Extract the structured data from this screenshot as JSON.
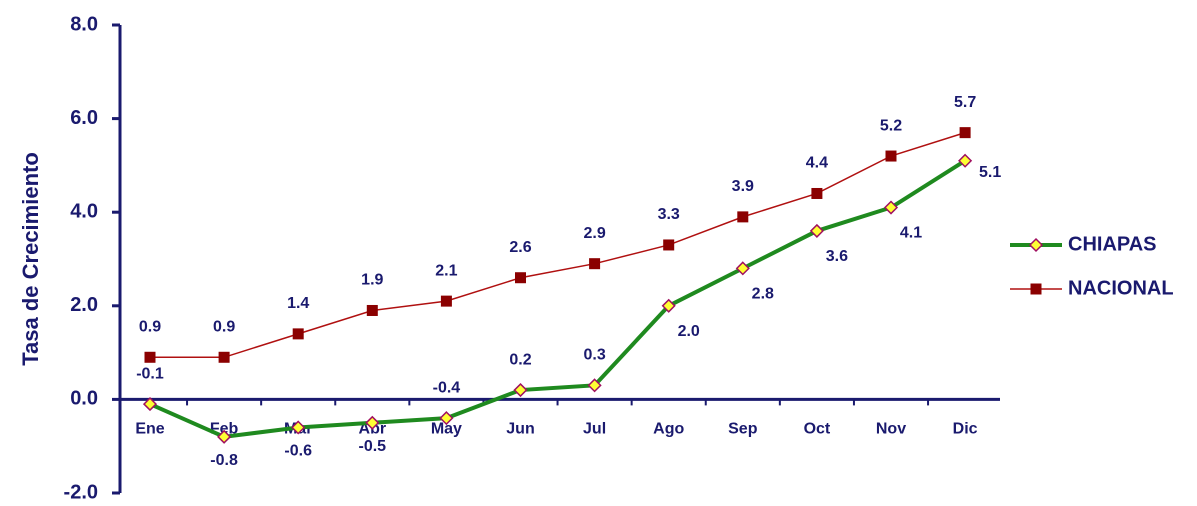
{
  "chart_data": {
    "type": "line",
    "y_label": "Tasa de Crecimiento",
    "categories": [
      "Ene",
      "Feb",
      "Mar",
      "Abr",
      "May",
      "Jun",
      "Jul",
      "Ago",
      "Sep",
      "Oct",
      "Nov",
      "Dic"
    ],
    "series": [
      {
        "name": "CHIAPAS",
        "color": "#1f8a1f",
        "marker": "diamond",
        "values": [
          -0.1,
          -0.8,
          -0.6,
          -0.5,
          -0.4,
          0.2,
          0.3,
          2.0,
          2.8,
          3.6,
          4.1,
          5.1
        ],
        "value_labels": [
          "-0.1",
          "-0.8",
          "-0.6",
          "-0.5",
          "-0.4",
          "0.2",
          "0.3",
          "2.0",
          "2.8",
          "3.6",
          "4.1",
          "5.1"
        ]
      },
      {
        "name": "NACIONAL",
        "color": "#b01010",
        "marker": "square",
        "values": [
          0.9,
          0.9,
          1.4,
          1.9,
          2.1,
          2.6,
          2.9,
          3.3,
          3.9,
          4.4,
          5.2,
          5.7
        ],
        "value_labels": [
          "0.9",
          "0.9",
          "1.4",
          "1.9",
          "2.1",
          "2.6",
          "2.9",
          "3.3",
          "3.9",
          "4.4",
          "5.2",
          "5.7"
        ]
      }
    ],
    "ylim": [
      -2,
      8
    ],
    "yticks": [
      {
        "value": -2,
        "label": "-2.0"
      },
      {
        "value": 0,
        "label": "0.0"
      },
      {
        "value": 2,
        "label": "2.0"
      },
      {
        "value": 4,
        "label": "4.0"
      },
      {
        "value": 6,
        "label": "6.0"
      },
      {
        "value": 8,
        "label": "8.0"
      }
    ],
    "legend": "right"
  }
}
